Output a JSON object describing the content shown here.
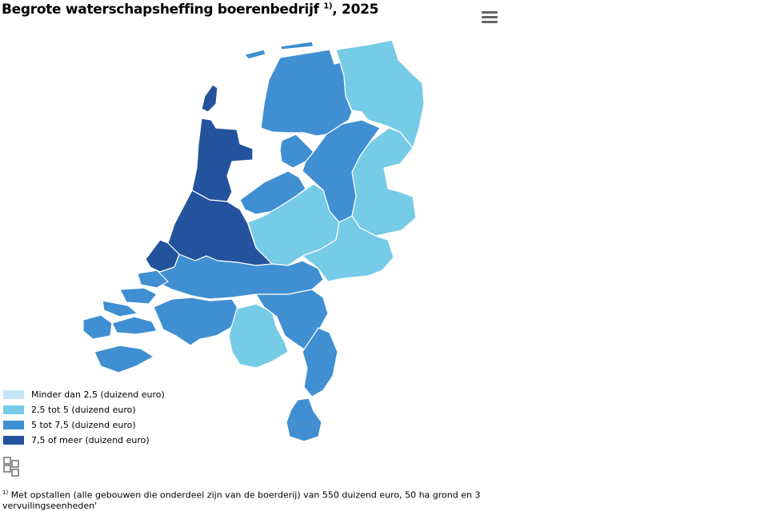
{
  "title": {
    "text": "Begrote waterschapsheffing boerenbedrijf",
    "sup": "1)",
    "year": ", 2025"
  },
  "menu": {
    "icon": "hamburger-menu-icon"
  },
  "colors": {
    "lt25": "#c6e6f7",
    "c25_5": "#76cbe6",
    "c5_75": "#3f8fd2",
    "c75": "#23539d"
  },
  "legend": [
    {
      "label": "Minder dan 2,5 (duizend euro)",
      "color": "#c6e6f7"
    },
    {
      "label": "2,5 tot 5 (duizend euro)",
      "color": "#76cbe6"
    },
    {
      "label": "5 tot 7,5 (duizend euro)",
      "color": "#3f8fd2"
    },
    {
      "label": "7,5 of meer (duizend euro)",
      "color": "#23539d"
    }
  ],
  "footnote": {
    "marker": "1)",
    "text": " Met opstallen (alle gebouwen die onderdeel zijn van de boerderij) van 550 duizend euro, 50 ha grond en 3 vervuilingseenheden'"
  },
  "logo": {
    "icon": "cbs-logo-icon"
  }
}
